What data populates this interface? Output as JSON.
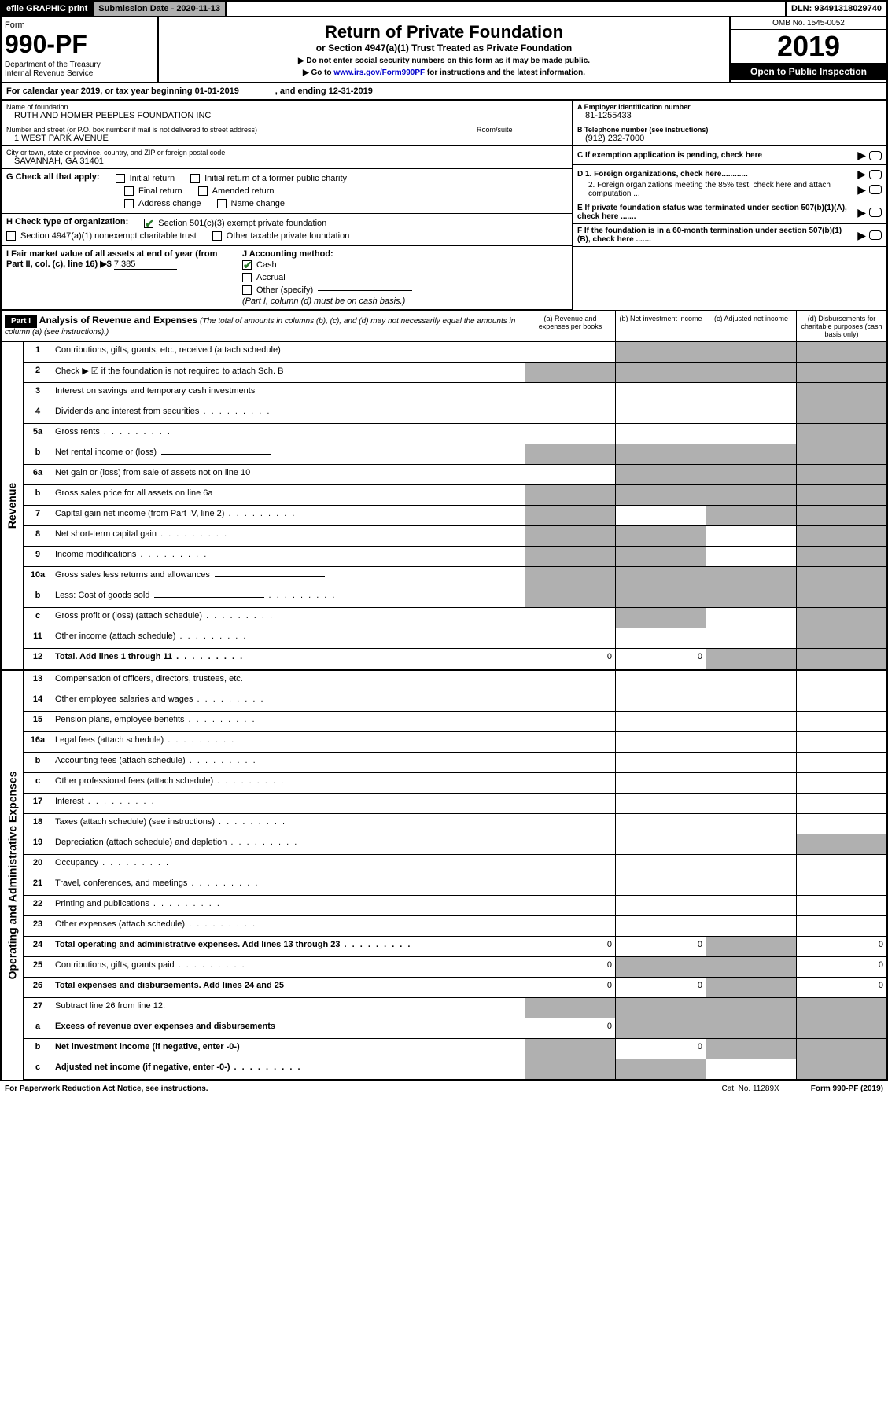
{
  "topbar": {
    "efile": "efile GRAPHIC print",
    "subdate_label": "Submission Date - 2020-11-13",
    "dln": "DLN: 93491318029740"
  },
  "header": {
    "form": "Form",
    "num": "990-PF",
    "dept": "Department of the Treasury\nInternal Revenue Service",
    "title": "Return of Private Foundation",
    "sub": "or Section 4947(a)(1) Trust Treated as Private Foundation",
    "note1": "▶ Do not enter social security numbers on this form as it may be made public.",
    "note2": "▶ Go to ",
    "link": "www.irs.gov/Form990PF",
    "note2b": " for instructions and the latest information.",
    "omb": "OMB No. 1545-0052",
    "year": "2019",
    "open": "Open to Public Inspection"
  },
  "calendar": "For calendar year 2019, or tax year beginning 01-01-2019               , and ending 12-31-2019",
  "foundation": {
    "name_label": "Name of foundation",
    "name": "RUTH AND HOMER PEEPLES FOUNDATION INC",
    "addr_label": "Number and street (or P.O. box number if mail is not delivered to street address)",
    "addr": "1 WEST PARK AVENUE",
    "room_label": "Room/suite",
    "city_label": "City or town, state or province, country, and ZIP or foreign postal code",
    "city": "SAVANNAH, GA  31401"
  },
  "right_info": {
    "a_label": "A Employer identification number",
    "a_val": "81-1255433",
    "b_label": "B Telephone number (see instructions)",
    "b_val": "(912) 232-7000",
    "c_label": "C If exemption application is pending, check here",
    "d1": "D 1. Foreign organizations, check here............",
    "d2": "2. Foreign organizations meeting the 85% test, check here and attach computation ...",
    "e": "E If private foundation status was terminated under section 507(b)(1)(A), check here .......",
    "f": "F If the foundation is in a 60-month termination under section 507(b)(1)(B), check here .......",
    "arrow": "▶"
  },
  "section_g": {
    "label": "G Check all that apply:",
    "opts": [
      "Initial return",
      "Initial return of a former public charity",
      "Final return",
      "Amended return",
      "Address change",
      "Name change"
    ]
  },
  "section_h": {
    "label": "H Check type of organization:",
    "opt1": "Section 501(c)(3) exempt private foundation",
    "opt2": "Section 4947(a)(1) nonexempt charitable trust",
    "opt3": "Other taxable private foundation"
  },
  "section_i": {
    "label": "I Fair market value of all assets at end of year (from Part II, col. (c), line 16) ▶$",
    "val": "7,385",
    "j_label": "J Accounting method:",
    "j_cash": "Cash",
    "j_accrual": "Accrual",
    "j_other": "Other (specify)",
    "j_note": "(Part I, column (d) must be on cash basis.)"
  },
  "part1": {
    "header": "Part I",
    "title": "Analysis of Revenue and Expenses",
    "note": "(The total of amounts in columns (b), (c), and (d) may not necessarily equal the amounts in column (a) (see instructions).)",
    "col_a": "(a)   Revenue and expenses per books",
    "col_b": "(b)  Net investment income",
    "col_c": "(c)  Adjusted net income",
    "col_d": "(d)  Disbursements for charitable purposes (cash basis only)"
  },
  "revenue_label": "Revenue",
  "expense_label": "Operating and Administrative Expenses",
  "rows": [
    {
      "n": "1",
      "d": "Contributions, gifts, grants, etc., received (attach schedule)",
      "grey": [
        "b",
        "c"
      ],
      "greyD": true
    },
    {
      "n": "2",
      "d": "Check ▶ ☑ if the foundation is not required to attach Sch. B",
      "bold": false,
      "greyAll": true
    },
    {
      "n": "3",
      "d": "Interest on savings and temporary cash investments",
      "greyD": true
    },
    {
      "n": "4",
      "d": "Dividends and interest from securities",
      "dots": true,
      "greyD": true
    },
    {
      "n": "5a",
      "d": "Gross rents",
      "dots": true,
      "greyD": true
    },
    {
      "n": "b",
      "d": "Net rental income or (loss)",
      "inline": true,
      "greyAll": true
    },
    {
      "n": "6a",
      "d": "Net gain or (loss) from sale of assets not on line 10",
      "grey": [
        "b",
        "c"
      ],
      "greyD": true
    },
    {
      "n": "b",
      "d": "Gross sales price for all assets on line 6a",
      "inline": true,
      "greyAll": true
    },
    {
      "n": "7",
      "d": "Capital gain net income (from Part IV, line 2)",
      "dots": true,
      "grey": [
        "a",
        "c"
      ],
      "greyD": true
    },
    {
      "n": "8",
      "d": "Net short-term capital gain",
      "dots": true,
      "grey": [
        "a",
        "b"
      ],
      "greyD": true
    },
    {
      "n": "9",
      "d": "Income modifications",
      "dots": true,
      "grey": [
        "a",
        "b"
      ],
      "greyD": true
    },
    {
      "n": "10a",
      "d": "Gross sales less returns and allowances",
      "inline": true,
      "greyAll": true
    },
    {
      "n": "b",
      "d": "Less: Cost of goods sold",
      "dots": true,
      "inline": true,
      "greyAll": true
    },
    {
      "n": "c",
      "d": "Gross profit or (loss) (attach schedule)",
      "dots": true,
      "grey": [
        "b"
      ],
      "greyD": true
    },
    {
      "n": "11",
      "d": "Other income (attach schedule)",
      "dots": true,
      "greyD": true
    },
    {
      "n": "12",
      "d": "Total. Add lines 1 through 11",
      "bold": true,
      "dots": true,
      "vals": {
        "a": "0",
        "b": "0"
      },
      "grey": [
        "c"
      ],
      "greyD": true
    }
  ],
  "exp_rows": [
    {
      "n": "13",
      "d": "Compensation of officers, directors, trustees, etc."
    },
    {
      "n": "14",
      "d": "Other employee salaries and wages",
      "dots": true
    },
    {
      "n": "15",
      "d": "Pension plans, employee benefits",
      "dots": true
    },
    {
      "n": "16a",
      "d": "Legal fees (attach schedule)",
      "dots": true
    },
    {
      "n": "b",
      "d": "Accounting fees (attach schedule)",
      "dots": true
    },
    {
      "n": "c",
      "d": "Other professional fees (attach schedule)",
      "dots": true
    },
    {
      "n": "17",
      "d": "Interest",
      "dots": true
    },
    {
      "n": "18",
      "d": "Taxes (attach schedule) (see instructions)",
      "dots": true
    },
    {
      "n": "19",
      "d": "Depreciation (attach schedule) and depletion",
      "dots": true,
      "greyD": true
    },
    {
      "n": "20",
      "d": "Occupancy",
      "dots": true
    },
    {
      "n": "21",
      "d": "Travel, conferences, and meetings",
      "dots": true
    },
    {
      "n": "22",
      "d": "Printing and publications",
      "dots": true
    },
    {
      "n": "23",
      "d": "Other expenses (attach schedule)",
      "dots": true
    },
    {
      "n": "24",
      "d": "Total operating and administrative expenses. Add lines 13 through 23",
      "bold": true,
      "dots": true,
      "vals": {
        "a": "0",
        "b": "0",
        "d": "0"
      },
      "grey": [
        "c"
      ]
    },
    {
      "n": "25",
      "d": "Contributions, gifts, grants paid",
      "dots": true,
      "vals": {
        "a": "0",
        "d": "0"
      },
      "grey": [
        "b",
        "c"
      ]
    },
    {
      "n": "26",
      "d": "Total expenses and disbursements. Add lines 24 and 25",
      "bold": true,
      "vals": {
        "a": "0",
        "b": "0",
        "d": "0"
      },
      "grey": [
        "c"
      ]
    },
    {
      "n": "27",
      "d": "Subtract line 26 from line 12:",
      "greyAll": true
    },
    {
      "n": "a",
      "d": "Excess of revenue over expenses and disbursements",
      "bold": true,
      "vals": {
        "a": "0"
      },
      "grey": [
        "b",
        "c"
      ],
      "greyD": true
    },
    {
      "n": "b",
      "d": "Net investment income (if negative, enter -0-)",
      "bold": true,
      "vals": {
        "b": "0"
      },
      "grey": [
        "a",
        "c"
      ],
      "greyD": true
    },
    {
      "n": "c",
      "d": "Adjusted net income (if negative, enter -0-)",
      "bold": true,
      "dots": true,
      "grey": [
        "a",
        "b"
      ],
      "greyD": true
    }
  ],
  "footer": {
    "pra": "For Paperwork Reduction Act Notice, see instructions.",
    "cat": "Cat. No. 11289X",
    "form": "Form 990-PF (2019)"
  }
}
